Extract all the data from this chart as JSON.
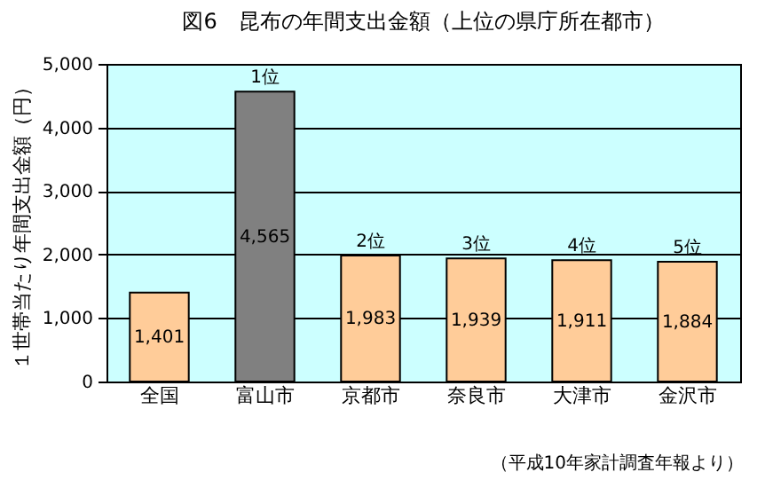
{
  "chart_data": {
    "type": "bar",
    "title": "図6　昆布の年間支出金額（上位の県庁所在都市）",
    "ylabel": "１世帯当たり年間支出金額（円）",
    "categories": [
      "全国",
      "富山市",
      "京都市",
      "奈良市",
      "大津市",
      "金沢市"
    ],
    "values": [
      1401,
      4565,
      1983,
      1939,
      1911,
      1884
    ],
    "colors": [
      "#ffcc99",
      "#808080",
      "#ffcc99",
      "#ffcc99",
      "#ffcc99",
      "#ffcc99"
    ],
    "ylim": [
      0,
      5000
    ],
    "yticks": [
      0,
      {
        "value": 1000,
        "label": "1,000"
      },
      {
        "value": 2000,
        "label": "2,000"
      },
      {
        "value": 3000,
        "label": "3,000"
      },
      {
        "value": 4000,
        "label": "4,000"
      },
      {
        "value": 5000,
        "label": "5,000"
      }
    ],
    "grid": "y",
    "value_labels": [
      "1,401",
      "4,565",
      "1,983",
      "1,939",
      "1,911",
      "1,884"
    ],
    "annotations": [
      {
        "text": "1位",
        "x": "富山市",
        "y": 4565
      },
      {
        "text": "2位",
        "x": "京都市",
        "y": 1983
      },
      {
        "text": "3位",
        "x": "奈良市",
        "y": 1939
      },
      {
        "text": "4位",
        "x": "大津市",
        "y": 1911
      },
      {
        "text": "5位",
        "x": "金沢市",
        "y": 1884
      },
      "（平成10年家計調査年報より）"
    ]
  }
}
